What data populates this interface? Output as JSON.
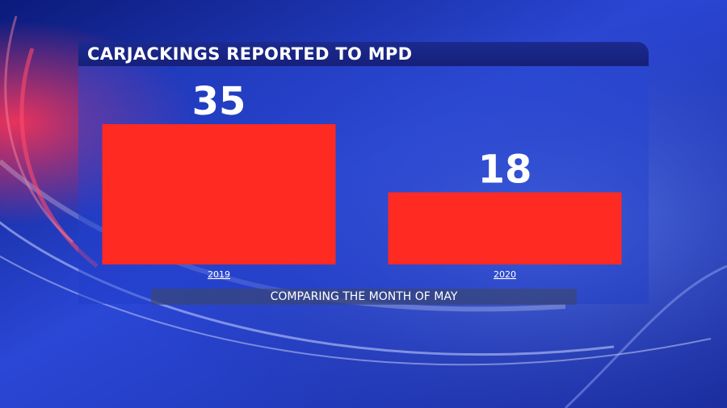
{
  "colors": {
    "bar": "#ff2a22",
    "text": "#ffffff"
  },
  "chart_data": {
    "type": "bar",
    "title": "CARJACKINGS REPORTED TO MPD",
    "subtitle": "COMPARING THE MONTH OF MAY",
    "categories": [
      "2019",
      "2020"
    ],
    "values": [
      35,
      18
    ],
    "data_labels": [
      "35",
      "18"
    ],
    "xlabel": "",
    "ylabel": "",
    "ylim": [
      0,
      35
    ],
    "grid": false
  }
}
